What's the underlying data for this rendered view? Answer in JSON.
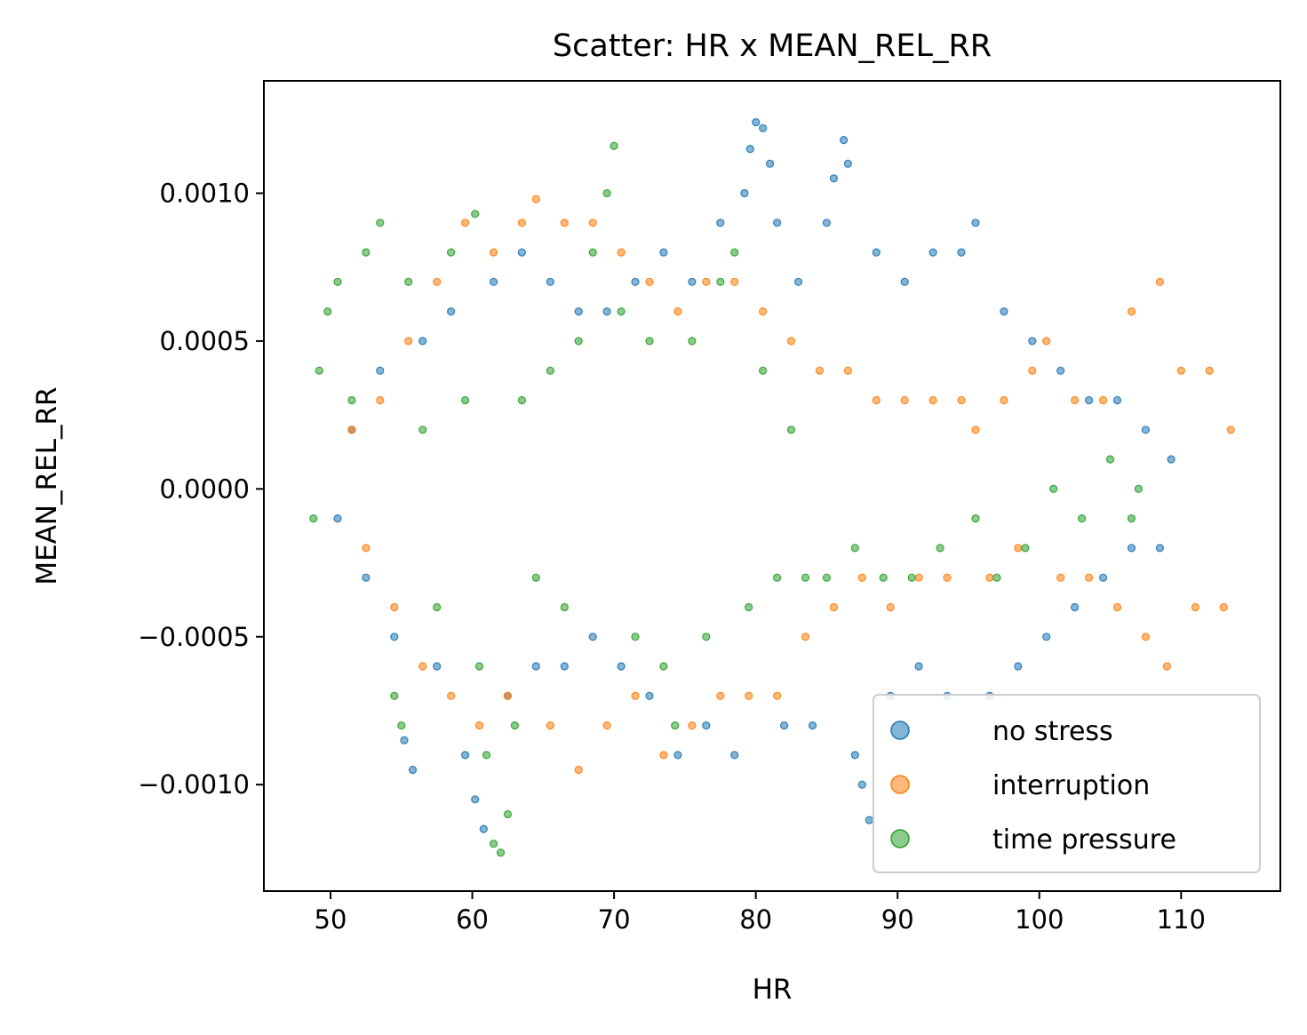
{
  "chart_data": {
    "type": "scatter",
    "title": "Scatter: HR x MEAN_REL_RR",
    "xlabel": "HR",
    "ylabel": "MEAN_REL_RR",
    "xlim": [
      45.3,
      117.0
    ],
    "ylim": [
      -0.00136,
      0.00138
    ],
    "x_ticks": [
      50,
      60,
      70,
      80,
      90,
      100,
      110
    ],
    "x_tick_labels": [
      "50",
      "60",
      "70",
      "80",
      "90",
      "100",
      "110"
    ],
    "y_ticks": [
      -0.001,
      -0.0005,
      0.0,
      0.0005,
      0.001
    ],
    "y_tick_labels": [
      "−0.0010",
      "−0.0005",
      "0.0000",
      "0.0005",
      "0.0010"
    ],
    "grid": false,
    "legend_position": "bottom-right",
    "series": [
      {
        "name": "no stress",
        "color": "#1f77b4",
        "points": [
          [
            50.5,
            -0.0001
          ],
          [
            51.5,
            0.0002
          ],
          [
            52.5,
            -0.0003
          ],
          [
            53.5,
            0.0004
          ],
          [
            54.5,
            -0.0005
          ],
          [
            55.2,
            -0.00085
          ],
          [
            55.8,
            -0.00095
          ],
          [
            56.5,
            0.0005
          ],
          [
            57.5,
            -0.0006
          ],
          [
            58.5,
            0.0006
          ],
          [
            59.5,
            -0.0009
          ],
          [
            60.2,
            -0.00105
          ],
          [
            60.8,
            -0.00115
          ],
          [
            61.5,
            0.0007
          ],
          [
            62.5,
            -0.0007
          ],
          [
            63.5,
            0.0008
          ],
          [
            64.5,
            -0.0006
          ],
          [
            65.5,
            0.0007
          ],
          [
            66.5,
            -0.0006
          ],
          [
            67.5,
            0.0006
          ],
          [
            68.5,
            -0.0005
          ],
          [
            69.5,
            0.0006
          ],
          [
            70.5,
            -0.0006
          ],
          [
            71.5,
            0.0007
          ],
          [
            72.5,
            -0.0007
          ],
          [
            73.5,
            0.0008
          ],
          [
            74.5,
            -0.0009
          ],
          [
            75.5,
            0.0007
          ],
          [
            76.5,
            -0.0008
          ],
          [
            77.5,
            0.0009
          ],
          [
            78.5,
            -0.0009
          ],
          [
            79.2,
            0.001
          ],
          [
            79.6,
            0.00115
          ],
          [
            80.0,
            0.00124
          ],
          [
            80.5,
            0.00122
          ],
          [
            81.0,
            0.0011
          ],
          [
            81.5,
            0.0009
          ],
          [
            82.0,
            -0.0008
          ],
          [
            83.0,
            0.0007
          ],
          [
            84.0,
            -0.0008
          ],
          [
            85.0,
            0.0009
          ],
          [
            85.5,
            0.00105
          ],
          [
            86.2,
            0.00118
          ],
          [
            86.5,
            0.0011
          ],
          [
            87.0,
            -0.0009
          ],
          [
            87.5,
            -0.001
          ],
          [
            88.0,
            -0.00112
          ],
          [
            88.5,
            0.0008
          ],
          [
            89.5,
            -0.0007
          ],
          [
            90.5,
            0.0007
          ],
          [
            91.5,
            -0.0006
          ],
          [
            92.5,
            0.0008
          ],
          [
            93.5,
            -0.0007
          ],
          [
            94.5,
            0.0008
          ],
          [
            95.5,
            0.0009
          ],
          [
            96.5,
            -0.0007
          ],
          [
            97.5,
            0.0006
          ],
          [
            98.5,
            -0.0006
          ],
          [
            99.5,
            0.0005
          ],
          [
            100.5,
            -0.0005
          ],
          [
            101.5,
            0.0004
          ],
          [
            102.5,
            -0.0004
          ],
          [
            103.5,
            0.0003
          ],
          [
            104.5,
            -0.0003
          ],
          [
            105.5,
            0.0003
          ],
          [
            106.5,
            -0.0002
          ],
          [
            107.5,
            0.0002
          ],
          [
            108.5,
            -0.0002
          ],
          [
            109.3,
            0.0001
          ]
        ]
      },
      {
        "name": "interruption",
        "color": "#ff7f0e",
        "points": [
          [
            51.5,
            0.0002
          ],
          [
            52.5,
            -0.0002
          ],
          [
            53.5,
            0.0003
          ],
          [
            54.5,
            -0.0004
          ],
          [
            55.5,
            0.0005
          ],
          [
            56.5,
            -0.0006
          ],
          [
            57.5,
            0.0007
          ],
          [
            58.5,
            -0.0007
          ],
          [
            59.5,
            0.0009
          ],
          [
            60.5,
            -0.0008
          ],
          [
            61.5,
            0.0008
          ],
          [
            62.5,
            -0.0007
          ],
          [
            63.5,
            0.0009
          ],
          [
            64.5,
            0.00098
          ],
          [
            65.5,
            -0.0008
          ],
          [
            66.5,
            0.0009
          ],
          [
            67.5,
            -0.00095
          ],
          [
            68.5,
            0.0009
          ],
          [
            69.5,
            -0.0008
          ],
          [
            70.5,
            0.0008
          ],
          [
            71.5,
            -0.0007
          ],
          [
            72.5,
            0.0007
          ],
          [
            73.5,
            -0.0009
          ],
          [
            74.5,
            0.0006
          ],
          [
            75.5,
            -0.0008
          ],
          [
            76.5,
            0.0007
          ],
          [
            77.5,
            -0.0007
          ],
          [
            78.5,
            0.0007
          ],
          [
            79.5,
            -0.0007
          ],
          [
            80.5,
            0.0006
          ],
          [
            81.5,
            -0.0007
          ],
          [
            82.5,
            0.0005
          ],
          [
            83.5,
            -0.0005
          ],
          [
            84.5,
            0.0004
          ],
          [
            85.5,
            -0.0004
          ],
          [
            86.5,
            0.0004
          ],
          [
            87.5,
            -0.0003
          ],
          [
            88.5,
            0.0003
          ],
          [
            89.5,
            -0.0004
          ],
          [
            90.5,
            0.0003
          ],
          [
            91.5,
            -0.0003
          ],
          [
            92.5,
            0.0003
          ],
          [
            93.5,
            -0.0003
          ],
          [
            94.5,
            0.0003
          ],
          [
            95.5,
            0.0002
          ],
          [
            96.5,
            -0.0003
          ],
          [
            97.5,
            0.0003
          ],
          [
            98.5,
            -0.0002
          ],
          [
            99.5,
            0.0004
          ],
          [
            100.5,
            0.0005
          ],
          [
            101.5,
            -0.0003
          ],
          [
            102.5,
            0.0003
          ],
          [
            103.5,
            -0.0003
          ],
          [
            104.5,
            0.0003
          ],
          [
            105.5,
            -0.0004
          ],
          [
            106.5,
            0.0006
          ],
          [
            107.5,
            -0.0005
          ],
          [
            108.5,
            0.0007
          ],
          [
            109.0,
            -0.0006
          ],
          [
            110.0,
            0.0004
          ],
          [
            111.0,
            -0.0004
          ],
          [
            112.0,
            0.0004
          ],
          [
            113.0,
            -0.0004
          ],
          [
            113.5,
            0.0002
          ]
        ]
      },
      {
        "name": "time pressure",
        "color": "#2ca02c",
        "points": [
          [
            48.8,
            -0.0001
          ],
          [
            49.2,
            0.0004
          ],
          [
            49.8,
            0.0006
          ],
          [
            50.5,
            0.0007
          ],
          [
            51.5,
            0.0003
          ],
          [
            52.5,
            0.0008
          ],
          [
            53.5,
            0.0009
          ],
          [
            54.5,
            -0.0007
          ],
          [
            55.0,
            -0.0008
          ],
          [
            55.5,
            0.0007
          ],
          [
            56.5,
            0.0002
          ],
          [
            57.5,
            -0.0004
          ],
          [
            58.5,
            0.0008
          ],
          [
            59.5,
            0.0003
          ],
          [
            60.2,
            0.00093
          ],
          [
            60.5,
            -0.0006
          ],
          [
            61.0,
            -0.0009
          ],
          [
            61.5,
            -0.0012
          ],
          [
            62.0,
            -0.00123
          ],
          [
            62.5,
            -0.0011
          ],
          [
            63.0,
            -0.0008
          ],
          [
            63.5,
            0.0003
          ],
          [
            64.5,
            -0.0003
          ],
          [
            65.5,
            0.0004
          ],
          [
            66.5,
            -0.0004
          ],
          [
            67.5,
            0.0005
          ],
          [
            68.5,
            0.0008
          ],
          [
            69.5,
            0.001
          ],
          [
            70.0,
            0.00116
          ],
          [
            70.5,
            0.0006
          ],
          [
            71.5,
            -0.0005
          ],
          [
            72.5,
            0.0005
          ],
          [
            73.5,
            -0.0006
          ],
          [
            74.3,
            -0.0008
          ],
          [
            75.5,
            0.0005
          ],
          [
            76.5,
            -0.0005
          ],
          [
            77.5,
            0.0007
          ],
          [
            78.5,
            0.0008
          ],
          [
            79.5,
            -0.0004
          ],
          [
            80.5,
            0.0004
          ],
          [
            81.5,
            -0.0003
          ],
          [
            82.5,
            0.0002
          ],
          [
            83.5,
            -0.0003
          ],
          [
            85.0,
            -0.0003
          ],
          [
            87.0,
            -0.0002
          ],
          [
            89.0,
            -0.0003
          ],
          [
            91.0,
            -0.0003
          ],
          [
            93.0,
            -0.0002
          ],
          [
            95.5,
            -0.0001
          ],
          [
            97.0,
            -0.0003
          ],
          [
            99.0,
            -0.0002
          ],
          [
            101.0,
            0.0
          ],
          [
            103.0,
            -0.0001
          ],
          [
            105.0,
            0.0001
          ],
          [
            106.5,
            -0.0001
          ],
          [
            107.0,
            0.0
          ]
        ]
      }
    ]
  }
}
